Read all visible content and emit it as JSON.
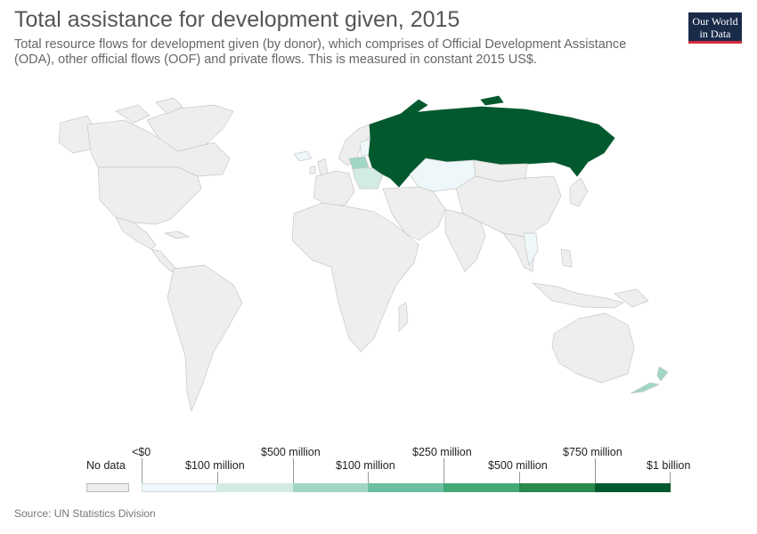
{
  "title": "Total assistance for development given, 2015",
  "subtitle": "Total resource flows for development given (by donor), which comprises of Official Development Assistance (ODA), other official flows (OOF) and private flows. This is measured in constant 2015 US$.",
  "logo": {
    "line1": "Our World",
    "line2": "in Data"
  },
  "source": "Source: UN Statistics Division",
  "legend": {
    "no_data_label": "No data",
    "no_data_color": "#eeeeee",
    "bins": [
      {
        "label_top": "<$0",
        "label_bottom": "",
        "color": "#eef7f9"
      },
      {
        "label_top": "",
        "label_bottom": "$100 million",
        "color": "#d2ece4"
      },
      {
        "label_top": "$500 million",
        "label_bottom": "",
        "color": "#9fd6c5"
      },
      {
        "label_top": "",
        "label_bottom": "$100 million",
        "color": "#6cbf9f"
      },
      {
        "label_top": "$250 million",
        "label_bottom": "",
        "color": "#44a877"
      },
      {
        "label_top": "",
        "label_bottom": "$500 million",
        "color": "#2a8a4e"
      },
      {
        "label_top": "$750 million",
        "label_bottom": "$1 billion",
        "color": "#03592e"
      }
    ]
  },
  "map_colors": {
    "no_data": "#eeeeee",
    "very_low": "#eef7f9",
    "low": "#d2ece4",
    "mid": "#9fd6c5",
    "high": "#03592e",
    "border": "#c8c8c8"
  }
}
